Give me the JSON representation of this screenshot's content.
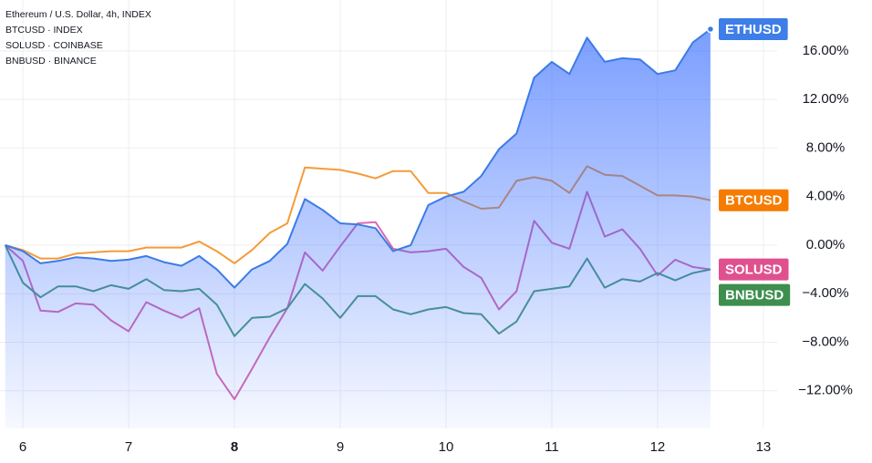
{
  "chart_data": {
    "type": "line",
    "header_lines": [
      "Ethereum / U.S. Dollar, 4h, INDEX",
      "BTCUSD · INDEX",
      "SOLUSD · COINBASE",
      "BNBUSD · BINANCE"
    ],
    "x": [
      5.8333,
      6,
      6.1667,
      6.3333,
      6.5,
      6.6667,
      6.8333,
      7,
      7.1667,
      7.3333,
      7.5,
      7.6667,
      7.8333,
      8,
      8.1667,
      8.3333,
      8.5,
      8.6667,
      8.8333,
      9,
      9.1667,
      9.3333,
      9.5,
      9.6667,
      9.8333,
      10,
      10.1667,
      10.3333,
      10.5,
      10.6667,
      10.8333,
      11,
      11.1667,
      11.3333,
      11.5,
      11.6667,
      11.8333,
      12,
      12.1667,
      12.3333,
      12.5
    ],
    "series": [
      {
        "name": "ETHUSD",
        "color": "#3c7be6",
        "label_color": "#3d7ee8",
        "area": true,
        "values": [
          0,
          -0.5,
          -1.5,
          -1.3,
          -1.0,
          -1.1,
          -1.3,
          -1.2,
          -0.9,
          -1.4,
          -1.7,
          -0.9,
          -2.0,
          -3.5,
          -2.0,
          -1.3,
          0.1,
          3.8,
          2.9,
          1.8,
          1.7,
          1.4,
          -0.5,
          0.0,
          3.3,
          4.0,
          4.4,
          5.7,
          7.9,
          9.2,
          13.8,
          15.1,
          14.1,
          17.1,
          15.1,
          15.4,
          15.3,
          14.1,
          14.4,
          16.7,
          17.8
        ]
      },
      {
        "name": "BTCUSD",
        "color": "#f59b3a",
        "label_color": "#f57c00",
        "values": [
          0,
          -0.4,
          -1.1,
          -1.1,
          -0.7,
          -0.6,
          -0.5,
          -0.5,
          -0.2,
          -0.2,
          -0.2,
          0.3,
          -0.5,
          -1.5,
          -0.4,
          1.0,
          1.8,
          6.4,
          6.3,
          6.2,
          5.9,
          5.5,
          6.1,
          6.1,
          4.3,
          4.3,
          3.6,
          3.0,
          3.1,
          5.3,
          5.6,
          5.3,
          4.3,
          6.5,
          5.8,
          5.7,
          4.9,
          4.1,
          4.1,
          4.0,
          3.7
        ]
      },
      {
        "name": "SOLUSD",
        "color": "#d96bb3",
        "label_color": "#e0508f",
        "values": [
          0,
          -1.3,
          -5.4,
          -5.5,
          -4.8,
          -4.9,
          -6.2,
          -7.1,
          -4.7,
          -5.4,
          -6.0,
          -5.2,
          -10.6,
          -12.7,
          -10.2,
          -7.6,
          -5.2,
          -0.6,
          -2.1,
          -0.1,
          1.8,
          1.9,
          -0.3,
          -0.6,
          -0.5,
          -0.3,
          -1.8,
          -2.7,
          -5.3,
          -3.8,
          2.0,
          0.2,
          -0.3,
          4.4,
          0.7,
          1.3,
          -0.3,
          -2.5,
          -1.2,
          -1.8,
          -2.0
        ]
      },
      {
        "name": "BNBUSD",
        "color": "#4f9a7e",
        "label_color": "#3e8e4e",
        "values": [
          0,
          -3.1,
          -4.3,
          -3.4,
          -3.4,
          -3.8,
          -3.3,
          -3.6,
          -2.8,
          -3.7,
          -3.8,
          -3.6,
          -4.9,
          -7.5,
          -6.0,
          -5.9,
          -5.2,
          -3.2,
          -4.4,
          -6.0,
          -4.2,
          -4.2,
          -5.3,
          -5.7,
          -5.3,
          -5.1,
          -5.6,
          -5.7,
          -7.3,
          -6.3,
          -3.8,
          -3.6,
          -3.4,
          -1.1,
          -3.5,
          -2.8,
          -3.0,
          -2.3,
          -2.9,
          -2.3,
          -2.0
        ]
      }
    ],
    "xlim": [
      5.784,
      13.13
    ],
    "xticks": [
      6,
      7,
      8,
      9,
      10,
      11,
      12,
      13
    ],
    "highlight_xtick": 8,
    "ylim": [
      -15.1,
      20.2
    ],
    "yticks": [
      {
        "value": -12,
        "label": "−12.00%"
      },
      {
        "value": -8,
        "label": "−8.00%"
      },
      {
        "value": -4,
        "label": "−4.00%"
      },
      {
        "value": 0,
        "label": "0.00%"
      },
      {
        "value": 4,
        "label": "4.00%"
      },
      {
        "value": 8,
        "label": "8.00%"
      },
      {
        "value": 12,
        "label": "12.00%"
      },
      {
        "value": 16,
        "label": "16.00%"
      }
    ],
    "grid": true
  }
}
